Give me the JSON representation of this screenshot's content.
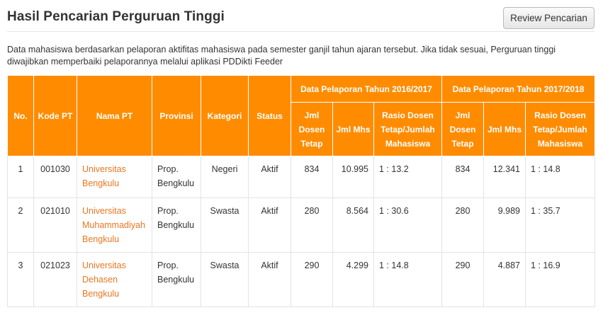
{
  "header": {
    "title": "Hasil Pencarian Perguruan Tinggi",
    "review_button": "Review Pencarian"
  },
  "description": "Data mahasiswa berdasarkan pelaporan aktifitas mahasiswa pada semester ganjil tahun ajaran tersebut. Jika tidak sesuai, Perguruan tinggi diwajibkan memperbaiki pelaporannya melalui aplikasi PDDikti Feeder",
  "colors": {
    "header_bg": "#ff8c00",
    "link": "#e87722"
  },
  "table": {
    "columns": {
      "no": "No.",
      "kode_pt": "Kode PT",
      "nama_pt": "Nama PT",
      "provinsi": "Provinsi",
      "kategori": "Kategori",
      "status": "Status"
    },
    "groups": [
      "Data Pelaporan Tahun 2016/2017",
      "Data Pelaporan Tahun 2017/2018"
    ],
    "subcolumns": {
      "jml_dosen": "Jml Dosen Tetap",
      "jml_mhs": "Jml Mhs",
      "rasio": "Rasio Dosen Tetap/Jumlah Mahasiswa"
    },
    "rows": [
      {
        "no": "1",
        "kode": "001030",
        "nama": "Universitas Bengkulu",
        "provinsi": "Prop. Bengkulu",
        "kategori": "Negeri",
        "status": "Aktif",
        "dosen_2016": "834",
        "mhs_2016": "10.995",
        "rasio_2016": "1 : 13.2",
        "dosen_2017": "834",
        "mhs_2017": "12.341",
        "rasio_2017": "1 : 14.8"
      },
      {
        "no": "2",
        "kode": "021010",
        "nama": "Universitas Muhammadiyah Bengkulu",
        "provinsi": "Prop. Bengkulu",
        "kategori": "Swasta",
        "status": "Aktif",
        "dosen_2016": "280",
        "mhs_2016": "8.564",
        "rasio_2016": "1 : 30.6",
        "dosen_2017": "280",
        "mhs_2017": "9.989",
        "rasio_2017": "1 : 35.7"
      },
      {
        "no": "3",
        "kode": "021023",
        "nama": "Universitas Dehasen Bengkulu",
        "provinsi": "Prop. Bengkulu",
        "kategori": "Swasta",
        "status": "Aktif",
        "dosen_2016": "290",
        "mhs_2016": "4.299",
        "rasio_2016": "1 : 14.8",
        "dosen_2017": "290",
        "mhs_2017": "4.887",
        "rasio_2017": "1 : 16.9"
      }
    ]
  }
}
